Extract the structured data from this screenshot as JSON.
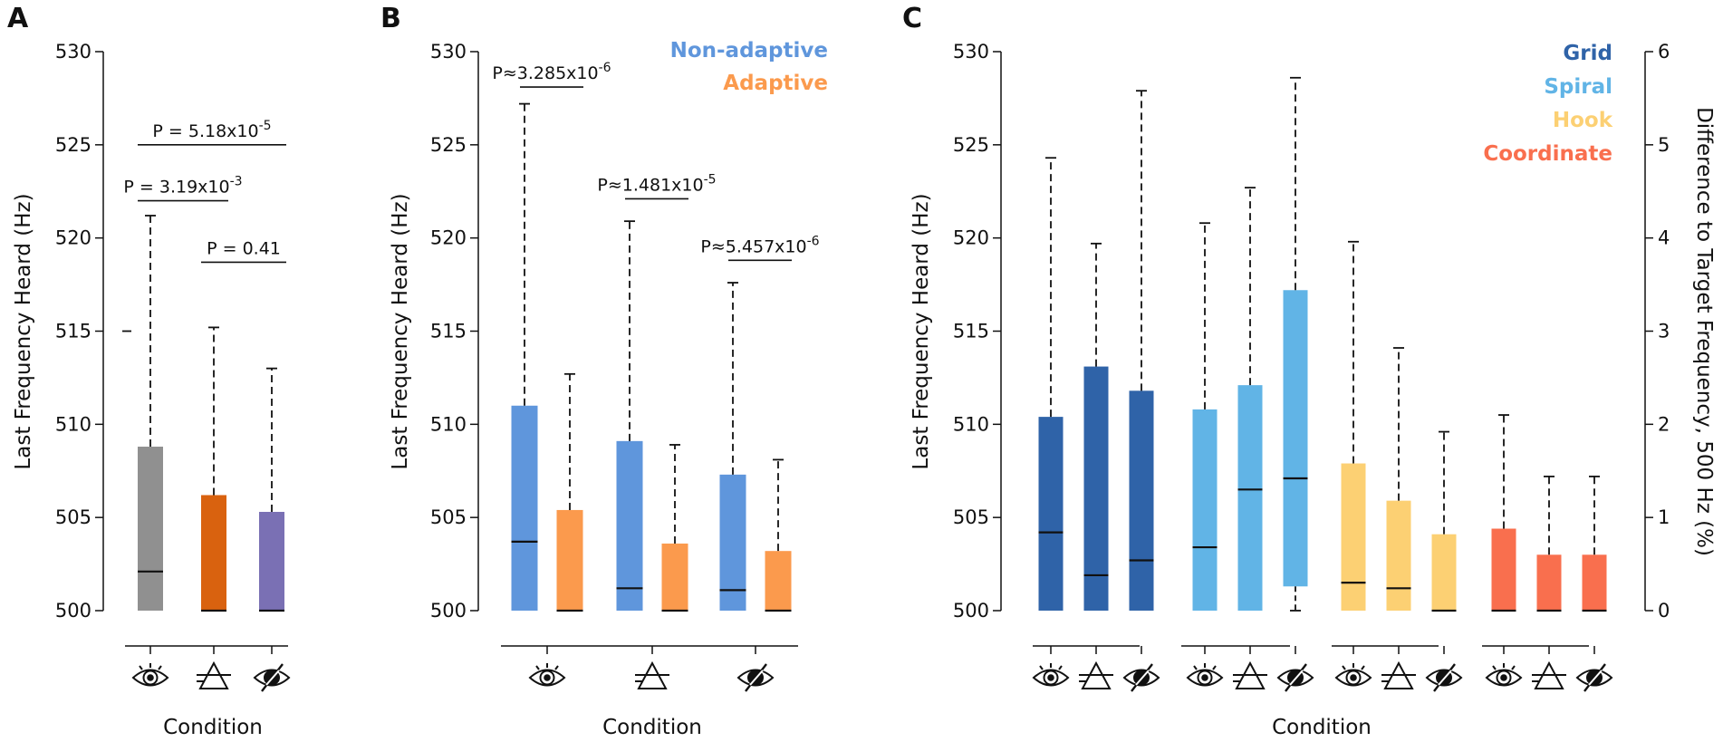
{
  "chart_data": [
    {
      "type": "box",
      "panel": "A",
      "ylabel": "Last Frequency Heard (Hz)",
      "xlabel": "Condition",
      "ylim": [
        500,
        530
      ],
      "yticks": [
        "500",
        "505",
        "510",
        "515",
        "520",
        "525",
        "530"
      ],
      "categories": [
        "eye",
        "triangle",
        "eye-slash"
      ],
      "boxes": [
        {
          "condition": "eye",
          "color": "#909090",
          "low": 500,
          "median": 502.1,
          "high": 508.8,
          "whisker": 521.2,
          "outlier": 515
        },
        {
          "condition": "triangle",
          "color": "#d9620f",
          "low": 500,
          "median": 500,
          "high": 506.2,
          "whisker": 515.2
        },
        {
          "condition": "eye-slash",
          "color": "#7a70b4",
          "low": 500,
          "median": 500,
          "high": 505.3,
          "whisker": 513
        }
      ],
      "comparisons": [
        {
          "from": 0,
          "to": 2,
          "y": 525,
          "label": "P = 5.18x10",
          "exp": "-5"
        },
        {
          "from": 0,
          "to": 1,
          "y": 522,
          "label": "P = 3.19x10",
          "exp": "-3"
        },
        {
          "from": 1,
          "to": 2,
          "y": 518.7,
          "label": "P = 0.41",
          "exp": ""
        }
      ]
    },
    {
      "type": "box",
      "panel": "B",
      "ylabel": "Last Frequency Heard (Hz)",
      "xlabel": "Condition",
      "ylim": [
        500,
        530
      ],
      "yticks": [
        "500",
        "505",
        "510",
        "515",
        "520",
        "525",
        "530"
      ],
      "categories": [
        "eye",
        "triangle",
        "eye-slash"
      ],
      "legend": [
        {
          "label": "Non-adaptive",
          "color": "#5f96dc"
        },
        {
          "label": "Adaptive",
          "color": "#fb9a4d"
        }
      ],
      "boxes": [
        {
          "condition": "eye",
          "series": "Non-adaptive",
          "color": "#5f96dc",
          "low": 500,
          "median": 503.7,
          "high": 511,
          "whisker": 527.2
        },
        {
          "condition": "eye",
          "series": "Adaptive",
          "color": "#fb9a4d",
          "low": 500,
          "median": 500,
          "high": 505.4,
          "whisker": 512.7
        },
        {
          "condition": "triangle",
          "series": "Non-adaptive",
          "color": "#5f96dc",
          "low": 500,
          "median": 501.2,
          "high": 509.1,
          "whisker": 520.9
        },
        {
          "condition": "triangle",
          "series": "Adaptive",
          "color": "#fb9a4d",
          "low": 500,
          "median": 500,
          "high": 503.6,
          "whisker": 508.9
        },
        {
          "condition": "eye-slash",
          "series": "Non-adaptive",
          "color": "#5f96dc",
          "low": 500,
          "median": 501.1,
          "high": 507.3,
          "whisker": 517.6
        },
        {
          "condition": "eye-slash",
          "series": "Adaptive",
          "color": "#fb9a4d",
          "low": 500,
          "median": 500,
          "high": 503.2,
          "whisker": 508.1
        }
      ],
      "comparisons": [
        {
          "group": 0,
          "y": 528.1,
          "label": "P≈3.285x10",
          "exp": "-6"
        },
        {
          "group": 1,
          "y": 522.1,
          "label": "P≈1.481x10",
          "exp": "-5"
        },
        {
          "group": 2,
          "y": 518.8,
          "label": "P≈5.457x10",
          "exp": "-6"
        }
      ]
    },
    {
      "type": "box",
      "panel": "C",
      "ylabel": "Last Frequency Heard (Hz)",
      "y2label": "Difference to Target Frequency, 500 Hz (%)",
      "xlabel": "Condition",
      "ylim": [
        500,
        530
      ],
      "yticks": [
        "500",
        "505",
        "510",
        "515",
        "520",
        "525",
        "530"
      ],
      "y2lim": [
        0,
        6
      ],
      "y2ticks": [
        "0",
        "1",
        "2",
        "3",
        "4",
        "5",
        "6"
      ],
      "legend": [
        {
          "label": "Grid",
          "color": "#2f63a8"
        },
        {
          "label": "Spiral",
          "color": "#61b4e6"
        },
        {
          "label": "Hook",
          "color": "#fcd073"
        },
        {
          "label": "Coordinate",
          "color": "#f96f4e"
        }
      ],
      "boxes": [
        {
          "series": "Grid",
          "condition": "eye",
          "color": "#2f63a8",
          "low": 500,
          "median": 504.2,
          "high": 510.4,
          "whisker": 524.3
        },
        {
          "series": "Grid",
          "condition": "triangle",
          "color": "#2f63a8",
          "low": 500,
          "median": 501.9,
          "high": 513.1,
          "whisker": 519.7
        },
        {
          "series": "Grid",
          "condition": "eye-slash",
          "color": "#2f63a8",
          "low": 500,
          "median": 502.7,
          "high": 511.8,
          "whisker": 527.9
        },
        {
          "series": "Spiral",
          "condition": "eye",
          "color": "#61b4e6",
          "low": 500,
          "median": 503.4,
          "high": 510.8,
          "whisker": 520.8
        },
        {
          "series": "Spiral",
          "condition": "triangle",
          "color": "#61b4e6",
          "low": 500,
          "median": 506.5,
          "high": 512.1,
          "whisker": 522.7
        },
        {
          "series": "Spiral",
          "condition": "eye-slash",
          "color": "#61b4e6",
          "low": 501.3,
          "median": 507.1,
          "high": 517.2,
          "whisker": 528.6,
          "lowerWhisker": 500
        },
        {
          "series": "Hook",
          "condition": "eye",
          "color": "#fcd073",
          "low": 500,
          "median": 501.5,
          "high": 507.9,
          "whisker": 519.8
        },
        {
          "series": "Hook",
          "condition": "triangle",
          "color": "#fcd073",
          "low": 500,
          "median": 501.2,
          "high": 505.9,
          "whisker": 514.1
        },
        {
          "series": "Hook",
          "condition": "eye-slash",
          "color": "#fcd073",
          "low": 500,
          "median": 500,
          "high": 504.1,
          "whisker": 509.6
        },
        {
          "series": "Coordinate",
          "condition": "eye",
          "color": "#f96f4e",
          "low": 500,
          "median": 500,
          "high": 504.4,
          "whisker": 510.5
        },
        {
          "series": "Coordinate",
          "condition": "triangle",
          "color": "#f96f4e",
          "low": 500,
          "median": 500,
          "high": 503,
          "whisker": 507.2
        },
        {
          "series": "Coordinate",
          "condition": "eye-slash",
          "color": "#f96f4e",
          "low": 500,
          "median": 500,
          "high": 503,
          "whisker": 507.2
        }
      ]
    }
  ]
}
